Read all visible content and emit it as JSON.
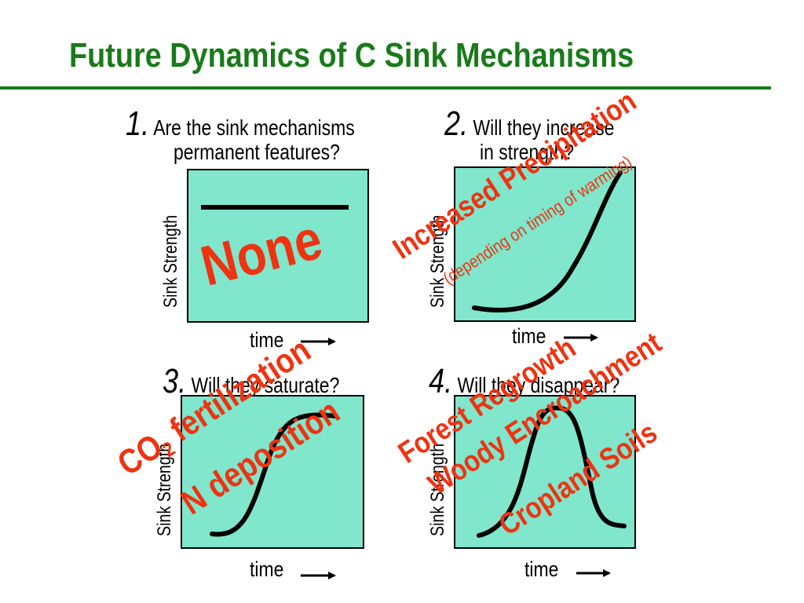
{
  "title": "Future Dynamics of C Sink Mechanisms",
  "panels": [
    {
      "number": "1.",
      "question_line1": "Are the sink mechanisms",
      "question_line2": "permanent features?",
      "ylabel": "Sink Strength",
      "xlabel": "time",
      "annotation": "None"
    },
    {
      "number": "2.",
      "question_line1": "Will they increase",
      "question_line2": "in strength?",
      "ylabel": "Sink Strength",
      "xlabel": "time",
      "annotation": "Increased Precipitation",
      "annotation_sub": "(depending on timing of warming)"
    },
    {
      "number": "3.",
      "question_line1": "Will they saturate?",
      "ylabel": "Sink Strength",
      "xlabel": "time",
      "annotation_co2_main": "CO",
      "annotation_co2_sub": "2",
      "annotation_co2_rest": " fertilization",
      "annotation_line2": "N deposition"
    },
    {
      "number": "4.",
      "question_line1": "Will they disappear?",
      "ylabel": "Sink Strength",
      "xlabel": "time",
      "annotation_line1": "Forest Regrowth",
      "annotation_line2": "Woody Encroachment",
      "annotation_line3": "Cropland Soils"
    }
  ],
  "colors": {
    "title": "#1a7a1a",
    "panel_fill": "#80e6cc",
    "annotation": "#ee3311"
  }
}
